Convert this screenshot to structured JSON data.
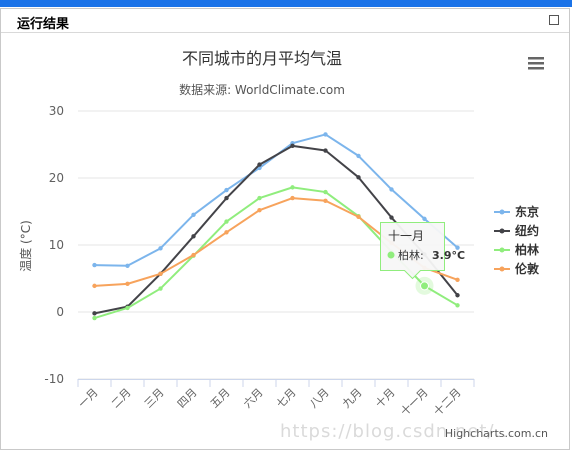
{
  "window": {
    "panel_title": "运行结果"
  },
  "watermark": "https://blog.csdn.net/...",
  "chart_data": {
    "type": "line",
    "title": "不同城市的月平均气温",
    "subtitle": "数据来源: WorldClimate.com",
    "credits": "Highcharts.com.cn",
    "ylabel": "温度 (°C)",
    "xlabel": "",
    "ylim": [
      -10,
      30
    ],
    "yticks": [
      "30",
      "20",
      "10",
      "0",
      "-10"
    ],
    "grid": true,
    "legend_position": "right",
    "categories": [
      "一月",
      "二月",
      "三月",
      "四月",
      "五月",
      "六月",
      "七月",
      "八月",
      "九月",
      "十月",
      "十一月",
      "十二月"
    ],
    "series": [
      {
        "name": "东京",
        "color": "#7cb5ec",
        "values": [
          7.0,
          6.9,
          9.5,
          14.5,
          18.2,
          21.5,
          25.2,
          26.5,
          23.3,
          18.3,
          13.9,
          9.6
        ]
      },
      {
        "name": "纽约",
        "color": "#434348",
        "values": [
          -0.2,
          0.8,
          5.7,
          11.3,
          17.0,
          22.0,
          24.8,
          24.1,
          20.1,
          14.1,
          8.6,
          2.5
        ]
      },
      {
        "name": "柏林",
        "color": "#90ed7d",
        "values": [
          -0.9,
          0.6,
          3.5,
          8.4,
          13.5,
          17.0,
          18.6,
          17.9,
          14.3,
          9.0,
          3.9,
          1.0
        ]
      },
      {
        "name": "伦敦",
        "color": "#f7a35c",
        "values": [
          3.9,
          4.2,
          5.7,
          8.5,
          11.9,
          15.2,
          17.0,
          16.6,
          14.2,
          10.3,
          6.6,
          4.8
        ]
      }
    ],
    "tooltip": {
      "category": "十一月",
      "series_label": "柏林: ",
      "value_text": "3.9°C",
      "series_index": 2,
      "point_index": 10
    }
  }
}
